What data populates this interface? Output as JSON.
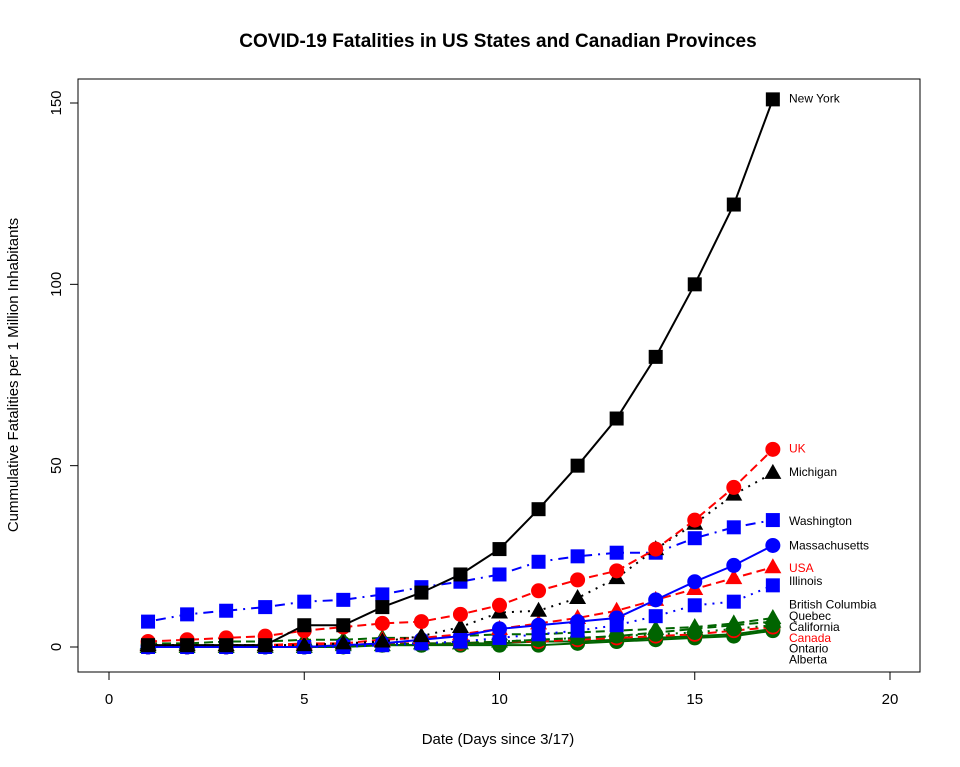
{
  "chart_data": {
    "type": "line",
    "title": "COVID-19 Fatalities in US States and Canadian Provinces",
    "xlabel": "Date (Days since 3/17)",
    "ylabel": "Cummulative Fatalities per 1 Million Inhabitants",
    "xlim": [
      0,
      20
    ],
    "ylim": [
      0,
      150
    ],
    "x_ticks": [
      0,
      5,
      10,
      15,
      20
    ],
    "y_ticks": [
      0,
      50,
      100,
      150
    ],
    "grid": false,
    "legend": "direct labels at right end of each series",
    "x": [
      1,
      2,
      3,
      4,
      5,
      6,
      7,
      8,
      9,
      10,
      11,
      12,
      13,
      14,
      15,
      16,
      17
    ],
    "series": [
      {
        "name": "New York",
        "color": "#000000",
        "marker": "square",
        "line": "solid",
        "label_color": "#000000",
        "values": [
          0.5,
          0.5,
          0.5,
          0.5,
          6,
          6,
          11,
          15,
          20,
          27,
          38,
          50,
          63,
          80,
          100,
          122,
          151
        ]
      },
      {
        "name": "UK",
        "color": "#ff0000",
        "marker": "circle",
        "line": "dashed",
        "label_color": "#ff0000",
        "values": [
          1.5,
          2,
          2.5,
          3,
          4.5,
          5.5,
          6.5,
          7,
          9,
          11.5,
          15.5,
          18.5,
          21,
          27,
          35,
          44,
          54.5
        ]
      },
      {
        "name": "Michigan",
        "color": "#000000",
        "marker": "triangle",
        "line": "dotted",
        "label_color": "#000000",
        "values": [
          0.5,
          0.5,
          0.5,
          0.5,
          0.5,
          1,
          1.5,
          3,
          5.5,
          9.5,
          10,
          13.5,
          19,
          27,
          34,
          42,
          48
        ]
      },
      {
        "name": "Washington",
        "color": "#0000ff",
        "marker": "square",
        "line": "dashdot",
        "label_color": "#000000",
        "values": [
          7,
          9,
          10,
          11,
          12.5,
          13,
          14.5,
          16.5,
          18,
          20,
          23.5,
          25,
          26,
          26,
          30,
          33,
          35
        ]
      },
      {
        "name": "Massachusetts",
        "color": "#0000ff",
        "marker": "circle",
        "line": "solid",
        "label_color": "#000000",
        "values": [
          0,
          0,
          0,
          0,
          0,
          0.5,
          1,
          2,
          3,
          5,
          6,
          7,
          8,
          13,
          18,
          22.5,
          28
        ]
      },
      {
        "name": "USA",
        "color": "#ff0000",
        "marker": "triangle",
        "line": "dashed",
        "label_color": "#ff0000",
        "values": [
          0.5,
          0.5,
          0.5,
          0.5,
          1,
          1,
          2,
          2.5,
          3.5,
          5,
          6.5,
          8,
          10,
          13,
          16,
          19,
          22
        ]
      },
      {
        "name": "Illinois",
        "color": "#0000ff",
        "marker": "square",
        "line": "dotted",
        "label_color": "#000000",
        "values": [
          0,
          0,
          0,
          0,
          0,
          0,
          0.5,
          1,
          1.5,
          2.5,
          3.5,
          4.5,
          6,
          8.5,
          11.5,
          12.5,
          17
        ]
      },
      {
        "name": "British Columbia",
        "color": "#006400",
        "marker": "triangle",
        "line": "dashed",
        "label_color": "#000000",
        "values": [
          1,
          1,
          1.5,
          1.5,
          2,
          2,
          2.5,
          2.5,
          3,
          3.5,
          3.5,
          4,
          4.5,
          5,
          5.5,
          6.5,
          8
        ]
      },
      {
        "name": "Quebec",
        "color": "#006400",
        "marker": "triangle",
        "line": "dashed",
        "label_color": "#000000",
        "values": [
          0,
          0,
          0,
          0,
          0,
          0.5,
          0.5,
          1,
          1,
          1.5,
          2,
          2.5,
          3,
          4,
          5,
          6,
          7
        ]
      },
      {
        "name": "California",
        "color": "#006400",
        "marker": "circle",
        "line": "dotted",
        "label_color": "#000000",
        "values": [
          0.5,
          0.5,
          0.5,
          0.5,
          0.5,
          1,
          1,
          1,
          1.5,
          1.5,
          2,
          2.5,
          3,
          3.5,
          4,
          5,
          6
        ]
      },
      {
        "name": "Canada",
        "color": "#ff0000",
        "marker": "circle",
        "line": "dashed",
        "label_color": "#ff0000",
        "values": [
          0,
          0,
          0,
          0.5,
          0.5,
          0.5,
          1,
          1,
          1,
          1.5,
          1.5,
          2,
          2.5,
          3,
          3.5,
          4.5,
          5.5
        ]
      },
      {
        "name": "Ontario",
        "color": "#006400",
        "marker": "circle",
        "line": "solid",
        "label_color": "#000000",
        "values": [
          0,
          0,
          0,
          0,
          0,
          0.5,
          0.5,
          0.5,
          1,
          1,
          1.5,
          1.5,
          2,
          2.5,
          3,
          3.5,
          5
        ]
      },
      {
        "name": "Alberta",
        "color": "#006400",
        "marker": "circle",
        "line": "solid",
        "label_color": "#000000",
        "values": [
          0,
          0,
          0,
          0,
          0,
          0,
          0.5,
          0.5,
          0.5,
          0.5,
          0.5,
          1,
          1.5,
          2,
          2.5,
          3,
          4.5
        ]
      }
    ],
    "label_y": {
      "New York": 151,
      "UK": 54.5,
      "Michigan": 48,
      "Washington": 34.5,
      "Massachusetts": 27.8,
      "USA": 21.5,
      "Illinois": 18,
      "British Columbia": 11.5,
      "Quebec": 8.3,
      "California": 5.3,
      "Canada": 2.3,
      "Ontario": -0.7,
      "Alberta": -3.7
    }
  }
}
